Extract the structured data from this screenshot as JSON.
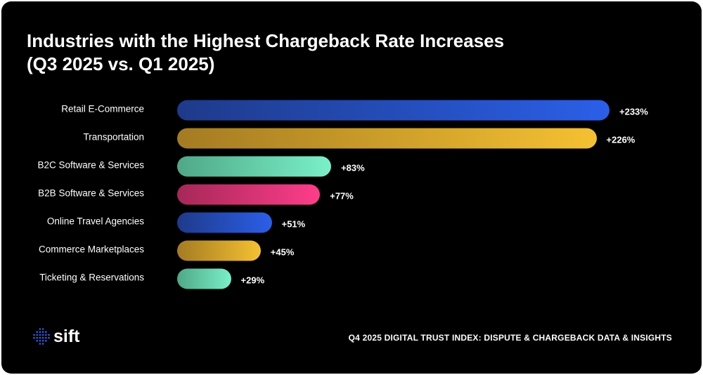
{
  "chart_data": {
    "type": "bar",
    "orientation": "horizontal",
    "title": "Industries with the Highest Chargeback Rate Increases (Q3 2025 vs. Q1 2025)",
    "title_lines": [
      "Industries with the Highest Chargeback Rate Increases",
      "(Q3 2025 vs. Q1 2025)"
    ],
    "categories": [
      "Retail E-Commerce",
      "Transportation",
      "B2C Software & Services",
      "B2B Software & Services",
      "Online Travel Agencies",
      "Commerce Marketplaces",
      "Ticketing & Reservations"
    ],
    "values": [
      233,
      226,
      83,
      77,
      51,
      45,
      29
    ],
    "data_labels": [
      "+233%",
      "+226%",
      "+83%",
      "+77%",
      "+51%",
      "+45%",
      "+29%"
    ],
    "unit": "%",
    "colors": [
      [
        "#1e3a8a",
        "#2b5fe8"
      ],
      [
        "#a47b22",
        "#f5c132"
      ],
      [
        "#4fa888",
        "#7af0c8"
      ],
      [
        "#a52858",
        "#ff3d8a"
      ],
      [
        "#1e3a8a",
        "#2b5fe8"
      ],
      [
        "#a47b22",
        "#f5c132"
      ],
      [
        "#4fa888",
        "#7af0c8"
      ]
    ],
    "xlim": [
      0,
      233
    ],
    "grid": false
  },
  "footer": "Q4 2025 DIGITAL TRUST INDEX: DISPUTE & CHARGEBACK DATA & INSIGHTS",
  "logo": {
    "text": "sift",
    "color": "#2b5fe8"
  }
}
